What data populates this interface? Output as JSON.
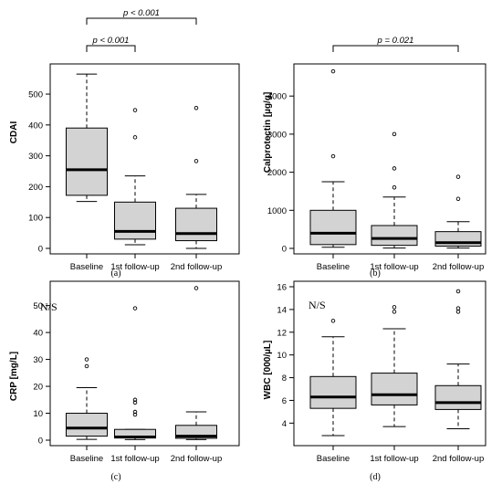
{
  "panels": [
    {
      "id": "a",
      "caption": "(a)",
      "chart_data": {
        "type": "boxplot",
        "ylabel": "CDAI",
        "categories": [
          "Baseline",
          "1st follow-up",
          "2nd follow-up"
        ],
        "ylim": [
          0,
          580
        ],
        "yticks": [
          0,
          100,
          200,
          300,
          400,
          500
        ],
        "boxes": [
          {
            "min": 152,
            "q1": 172,
            "median": 255,
            "q3": 390,
            "max": 565,
            "outliers": []
          },
          {
            "min": 12,
            "q1": 30,
            "median": 55,
            "q3": 150,
            "max": 235,
            "outliers": [
              360,
              448
            ]
          },
          {
            "min": 0,
            "q1": 25,
            "median": 48,
            "q3": 130,
            "max": 175,
            "outliers": [
              283,
              455
            ]
          }
        ],
        "annotations": [
          {
            "from": 0,
            "to": 2,
            "label": "p < 0.001",
            "level": 1
          },
          {
            "from": 0,
            "to": 1,
            "label": "p < 0.001",
            "level": 0
          }
        ]
      }
    },
    {
      "id": "b",
      "caption": "(b)",
      "chart_data": {
        "type": "boxplot",
        "ylabel": "Calprotectin [µg/g]",
        "categories": [
          "Baseline",
          "1st follow-up",
          "2nd follow-up"
        ],
        "ylim": [
          0,
          4700
        ],
        "yticks": [
          0,
          1000,
          2000,
          3000,
          4000
        ],
        "boxes": [
          {
            "min": 30,
            "q1": 100,
            "median": 400,
            "q3": 1000,
            "max": 1750,
            "outliers": [
              2420,
              4650
            ]
          },
          {
            "min": 10,
            "q1": 80,
            "median": 260,
            "q3": 600,
            "max": 1350,
            "outliers": [
              1600,
              2100,
              3000
            ]
          },
          {
            "min": 10,
            "q1": 60,
            "median": 150,
            "q3": 440,
            "max": 700,
            "outliers": [
              1300,
              1880
            ]
          }
        ],
        "annotations": [
          {
            "from": 0,
            "to": 2,
            "label": "p = 0.021",
            "level": 0
          }
        ]
      }
    },
    {
      "id": "c",
      "caption": "(c)",
      "chart_data": {
        "type": "boxplot",
        "ylabel": "CRP [mg/L]",
        "note": "N/S",
        "categories": [
          "Baseline",
          "1st follow-up",
          "2nd follow-up"
        ],
        "ylim": [
          0,
          57
        ],
        "yticks": [
          0,
          10,
          20,
          30,
          40,
          50
        ],
        "boxes": [
          {
            "min": 0.3,
            "q1": 1.5,
            "median": 4.5,
            "q3": 10,
            "max": 19.5,
            "outliers": [
              27.5,
              30
            ]
          },
          {
            "min": 0.2,
            "q1": 0.8,
            "median": 1.2,
            "q3": 4,
            "max": 4,
            "outliers": [
              9.5,
              10.5,
              14,
              15,
              49
            ]
          },
          {
            "min": 0.2,
            "q1": 0.7,
            "median": 1.5,
            "q3": 5.5,
            "max": 10.5,
            "outliers": [
              56.5
            ]
          }
        ]
      }
    },
    {
      "id": "d",
      "caption": "(d)",
      "chart_data": {
        "type": "boxplot",
        "ylabel": "WBC [000/µL]",
        "note": "N/S",
        "categories": [
          "Baseline",
          "1st follow-up",
          "2nd follow-up"
        ],
        "ylim": [
          2.5,
          16
        ],
        "yticks": [
          4,
          6,
          8,
          10,
          12,
          14,
          16
        ],
        "boxes": [
          {
            "min": 2.9,
            "q1": 5.3,
            "median": 6.3,
            "q3": 8.1,
            "max": 11.6,
            "outliers": [
              13
            ]
          },
          {
            "min": 3.7,
            "q1": 5.6,
            "median": 6.5,
            "q3": 8.4,
            "max": 12.3,
            "outliers": [
              13.8,
              14.2
            ]
          },
          {
            "min": 3.5,
            "q1": 5.2,
            "median": 5.8,
            "q3": 7.3,
            "max": 9.2,
            "outliers": [
              13.8,
              14.1,
              15.6
            ]
          }
        ]
      }
    }
  ]
}
